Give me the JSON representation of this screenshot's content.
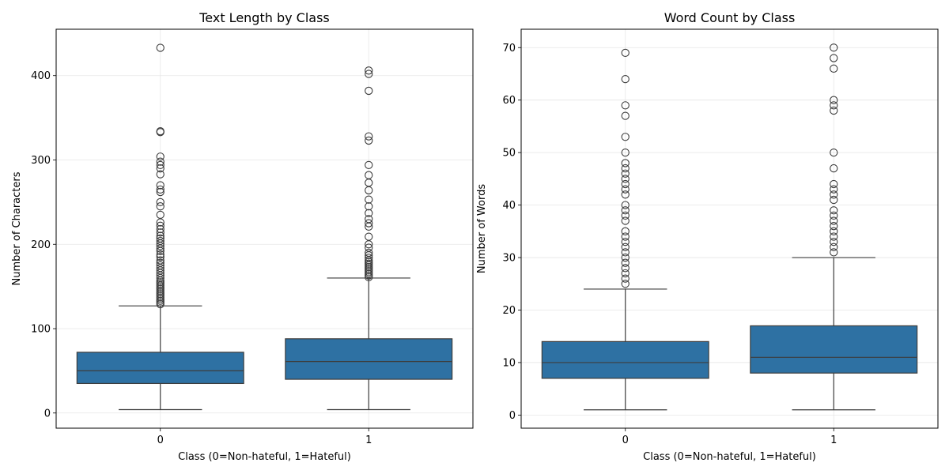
{
  "chart_data": [
    {
      "type": "box",
      "title": "Text Length by Class",
      "xlabel": "Class (0=Non-hateful, 1=Hateful)",
      "ylabel": "Number of Characters",
      "ylim": [
        -18,
        455
      ],
      "yticks": [
        0,
        100,
        200,
        300,
        400
      ],
      "grid": true,
      "categories": [
        "0",
        "1"
      ],
      "color": "#2e71a3",
      "boxes": [
        {
          "category": "0",
          "whisker_low": 4,
          "q1": 35,
          "median": 50,
          "q3": 72,
          "whisker_high": 127,
          "outliers": [
            129,
            131,
            133,
            135,
            137,
            139,
            141,
            143,
            145,
            147,
            149,
            151,
            153,
            155,
            157,
            160,
            163,
            166,
            169,
            172,
            175,
            178,
            181,
            185,
            188,
            192,
            195,
            198,
            201,
            204,
            207,
            210,
            214,
            218,
            222,
            226,
            235,
            245,
            250,
            262,
            265,
            270,
            283,
            290,
            294,
            298,
            304,
            333,
            334,
            433
          ]
        },
        {
          "category": "1",
          "whisker_low": 4,
          "q1": 40,
          "median": 61,
          "q3": 88,
          "whisker_high": 160,
          "outliers": [
            161,
            163,
            165,
            167,
            169,
            171,
            173,
            175,
            177,
            179,
            181,
            184,
            187,
            190,
            196,
            200,
            209,
            221,
            225,
            230,
            237,
            245,
            253,
            264,
            273,
            282,
            294,
            323,
            328,
            382,
            402,
            406
          ]
        }
      ]
    },
    {
      "type": "box",
      "title": "Word Count by Class",
      "xlabel": "Class (0=Non-hateful, 1=Hateful)",
      "ylabel": "Number of Words",
      "ylim": [
        -2.5,
        73.5
      ],
      "yticks": [
        0,
        10,
        20,
        30,
        40,
        50,
        60,
        70
      ],
      "grid": true,
      "categories": [
        "0",
        "1"
      ],
      "color": "#2e71a3",
      "boxes": [
        {
          "category": "0",
          "whisker_low": 1,
          "q1": 7,
          "median": 10,
          "q3": 14,
          "whisker_high": 24,
          "outliers": [
            25,
            26,
            27,
            28,
            29,
            30,
            31,
            32,
            33,
            34,
            35,
            37,
            38,
            39,
            40,
            42,
            43,
            44,
            45,
            46,
            47,
            48,
            50,
            53,
            57,
            59,
            64,
            69
          ]
        },
        {
          "category": "1",
          "whisker_low": 1,
          "q1": 8,
          "median": 11,
          "q3": 17,
          "whisker_high": 30,
          "outliers": [
            31,
            32,
            33,
            34,
            35,
            36,
            37,
            38,
            39,
            41,
            42,
            43,
            44,
            47,
            50,
            58,
            59,
            60,
            66,
            68,
            70
          ]
        }
      ]
    }
  ]
}
